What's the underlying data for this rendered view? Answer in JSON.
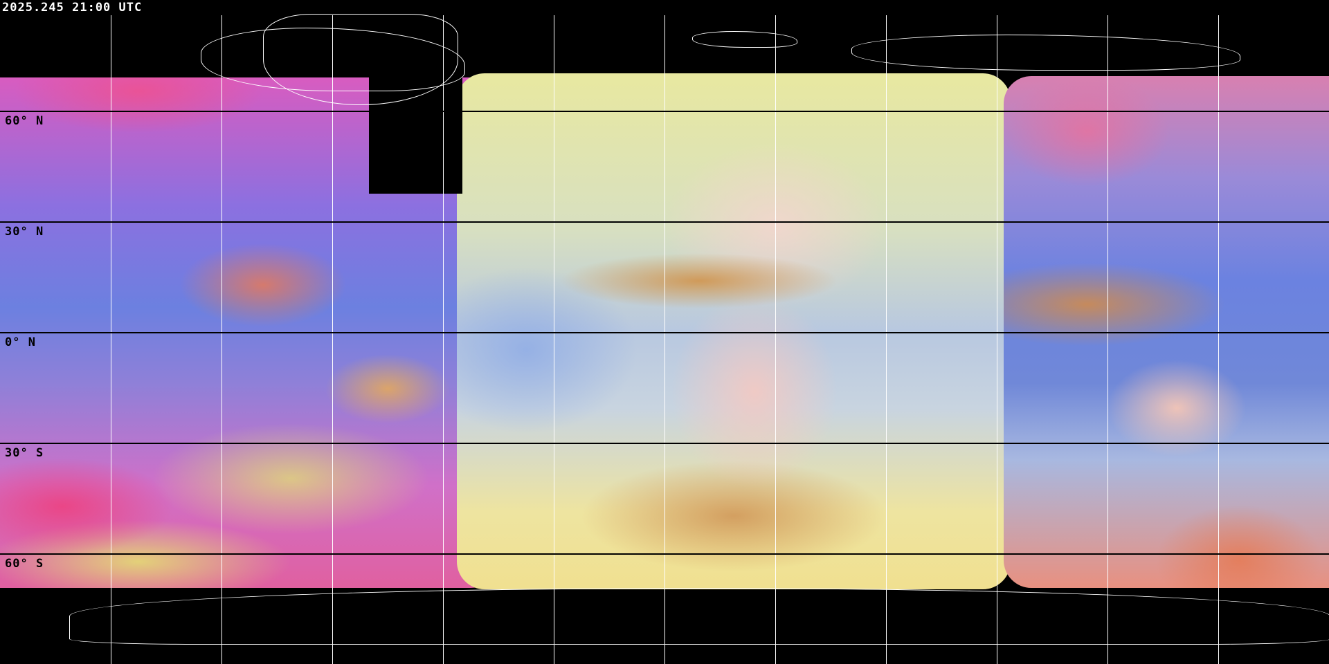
{
  "header": {
    "timestamp": "2025.245 21:00 UTC"
  },
  "grid": {
    "latitude_labels": [
      "60° N",
      "30° N",
      "0° N",
      "30° S",
      "60° S"
    ],
    "line_color_vertical": "#ffffff",
    "line_color_horizontal": "#000000"
  },
  "map": {
    "projection": "equirectangular",
    "product": "false-color composite satellite imagery",
    "background": "#000000"
  }
}
